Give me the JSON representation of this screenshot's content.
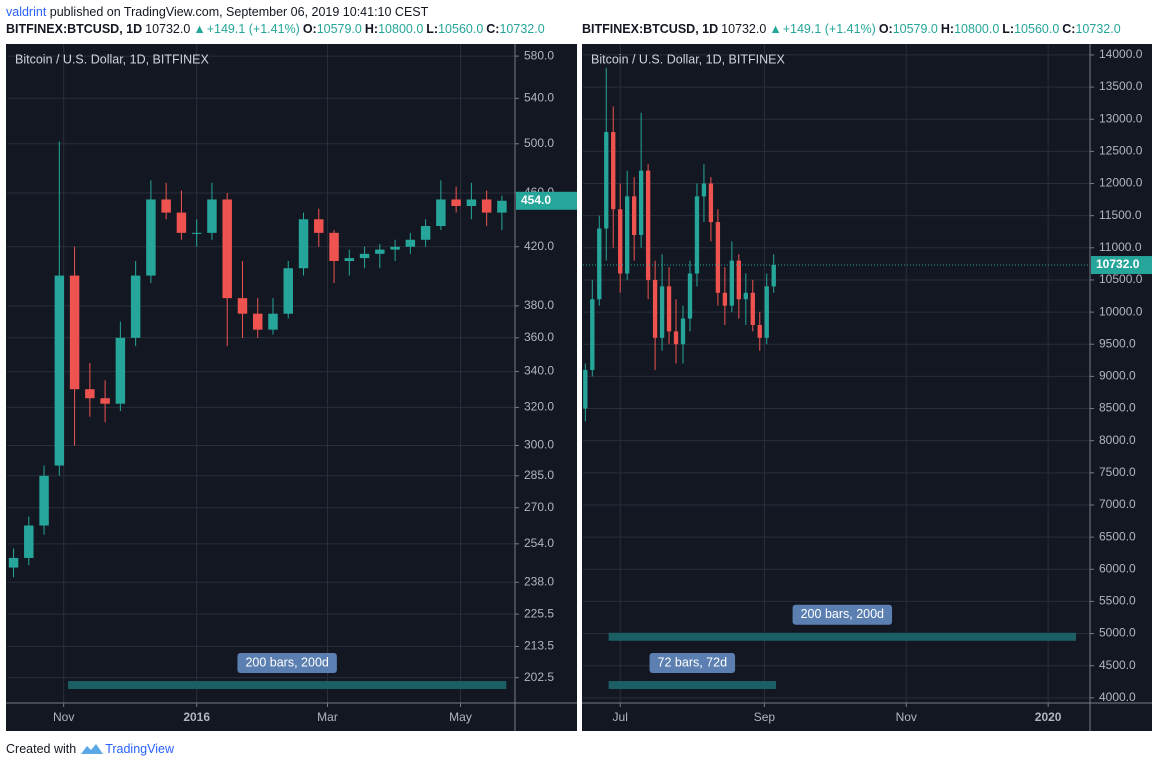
{
  "header": {
    "user": "valdrint",
    "published": "published on TradingView.com, September 06, 2019 10:41:10 CEST"
  },
  "quote": {
    "symbol": "BITFINEX:BTCUSD, 1D",
    "last": "10732.0",
    "change": "+149.1 (+1.41%)",
    "fields": [
      {
        "key": "O:",
        "value": "10579.0"
      },
      {
        "key": "H:",
        "value": "10800.0"
      },
      {
        "key": "L:",
        "value": "10560.0"
      },
      {
        "key": "C:",
        "value": "10732.0"
      }
    ]
  },
  "footer": {
    "created": "Created with",
    "brand": "TradingView"
  },
  "chart_data": [
    {
      "type": "candlestick",
      "title": "Bitcoin / U.S. Dollar, 1D, BITFINEX",
      "log": true,
      "grid": true,
      "up_color": "#26a69a",
      "down_color": "#ef5350",
      "price_line": false,
      "x": [
        3,
        10,
        17,
        24,
        31,
        38,
        45,
        52,
        59,
        66,
        73,
        80,
        87,
        94,
        101,
        108,
        115,
        122,
        129,
        136,
        143,
        150,
        157,
        164,
        171,
        178,
        185,
        192,
        199,
        206,
        213,
        220,
        227
      ],
      "open": [
        244,
        248,
        262,
        290,
        400,
        330,
        325,
        322,
        360,
        400,
        455,
        445,
        430,
        430,
        455,
        385,
        375,
        365,
        375,
        405,
        440,
        430,
        410,
        412,
        415,
        418,
        420,
        425,
        435,
        455,
        450,
        455,
        445
      ],
      "high": [
        252,
        266,
        290,
        502,
        420,
        345,
        335,
        370,
        410,
        470,
        468,
        462,
        440,
        468,
        460,
        410,
        385,
        385,
        410,
        445,
        448,
        432,
        418,
        420,
        422,
        425,
        430,
        440,
        470,
        465,
        468,
        462,
        458
      ],
      "low": [
        240,
        245,
        258,
        285,
        300,
        315,
        312,
        318,
        355,
        395,
        440,
        425,
        420,
        425,
        355,
        360,
        360,
        362,
        372,
        400,
        420,
        395,
        400,
        405,
        405,
        410,
        415,
        420,
        432,
        445,
        440,
        435,
        432
      ],
      "close": [
        248,
        262,
        285,
        400,
        330,
        325,
        322,
        360,
        400,
        455,
        445,
        430,
        430,
        455,
        385,
        375,
        365,
        375,
        405,
        440,
        430,
        410,
        412,
        415,
        418,
        420,
        425,
        435,
        455,
        450,
        455,
        445,
        454
      ],
      "last_label": "454.0",
      "xlim": [
        0,
        233
      ],
      "xticks": [
        {
          "value": 26,
          "label": "Nov"
        },
        {
          "value": 87,
          "label": "2016"
        },
        {
          "value": 147,
          "label": "Mar"
        },
        {
          "value": 208,
          "label": "May"
        }
      ],
      "ylim": [
        194,
        592
      ],
      "yticks": [
        {
          "value": 202.5,
          "label": "202.5"
        },
        {
          "value": 213.5,
          "label": "213.5"
        },
        {
          "value": 225.5,
          "label": "225.5"
        },
        {
          "value": 238,
          "label": "238.0"
        },
        {
          "value": 254,
          "label": "254.0"
        },
        {
          "value": 270,
          "label": "270.0"
        },
        {
          "value": 285,
          "label": "285.0"
        },
        {
          "value": 300,
          "label": "300.0"
        },
        {
          "value": 320,
          "label": "320.0"
        },
        {
          "value": 340,
          "label": "340.0"
        },
        {
          "value": 360,
          "label": "360.0"
        },
        {
          "value": 380,
          "label": "380.0"
        },
        {
          "value": 420,
          "label": "420.0"
        },
        {
          "value": 460,
          "label": "460.0"
        },
        {
          "value": 500,
          "label": "500.0"
        },
        {
          "value": 540,
          "label": "540.0"
        },
        {
          "value": 580,
          "label": "580.0"
        }
      ],
      "ranges": [
        {
          "label": "200 bars, 200d",
          "x": [
            28,
            229
          ],
          "y": 200
        }
      ]
    },
    {
      "type": "candlestick",
      "title": "Bitcoin / U.S. Dollar, 1D, BITFINEX",
      "log": false,
      "grid": true,
      "up_color": "#26a69a",
      "down_color": "#ef5350",
      "price_line": true,
      "x": [
        1,
        4,
        7,
        10,
        13,
        16,
        19,
        22,
        25,
        28,
        31,
        34,
        37,
        40,
        43,
        46,
        49,
        52,
        55,
        58,
        61,
        64,
        67,
        70,
        73,
        76,
        79,
        82
      ],
      "open": [
        8500,
        9100,
        10200,
        11300,
        12800,
        11600,
        10600,
        11800,
        11200,
        12200,
        10500,
        9600,
        10400,
        9700,
        9500,
        9900,
        10600,
        11800,
        12000,
        11400,
        10300,
        10100,
        10800,
        10200,
        10300,
        9800,
        9600,
        10400
      ],
      "high": [
        9200,
        10500,
        11500,
        13800,
        13200,
        12000,
        12200,
        12100,
        13100,
        12300,
        10800,
        10900,
        10700,
        10200,
        10100,
        10800,
        12000,
        12300,
        12100,
        11600,
        10700,
        11100,
        10900,
        10600,
        10500,
        10000,
        10600,
        10900
      ],
      "low": [
        8300,
        9000,
        10100,
        10800,
        11000,
        10300,
        10500,
        10800,
        11000,
        10200,
        9100,
        9400,
        9500,
        9200,
        9200,
        9700,
        10400,
        11400,
        11100,
        10100,
        9800,
        10000,
        9900,
        9800,
        9700,
        9400,
        9500,
        10300
      ],
      "close": [
        9100,
        10200,
        11300,
        12800,
        11600,
        10600,
        11800,
        11200,
        12200,
        10500,
        9600,
        10400,
        9700,
        9500,
        9900,
        10600,
        11800,
        12000,
        11400,
        10300,
        10100,
        10800,
        10200,
        10300,
        9800,
        9600,
        10400,
        10732
      ],
      "last_label": "10732.0",
      "xlim": [
        0,
        218
      ],
      "xticks": [
        {
          "value": 16,
          "label": "Jul"
        },
        {
          "value": 78,
          "label": "Sep"
        },
        {
          "value": 139,
          "label": "Nov"
        },
        {
          "value": 200,
          "label": "2020"
        }
      ],
      "ylim": [
        3920,
        14170
      ],
      "yticks": [
        {
          "value": 4000,
          "label": "4000.0"
        },
        {
          "value": 4500,
          "label": "4500.0"
        },
        {
          "value": 5000,
          "label": "5000.0"
        },
        {
          "value": 5500,
          "label": "5500.0"
        },
        {
          "value": 6000,
          "label": "6000.0"
        },
        {
          "value": 6500,
          "label": "6500.0"
        },
        {
          "value": 7000,
          "label": "7000.0"
        },
        {
          "value": 7500,
          "label": "7500.0"
        },
        {
          "value": 8000,
          "label": "8000.0"
        },
        {
          "value": 8500,
          "label": "8500.0"
        },
        {
          "value": 9000,
          "label": "9000.0"
        },
        {
          "value": 9500,
          "label": "9500.0"
        },
        {
          "value": 10000,
          "label": "10000.0"
        },
        {
          "value": 10500,
          "label": "10500.0"
        },
        {
          "value": 11000,
          "label": "11000.0"
        },
        {
          "value": 11500,
          "label": "11500.0"
        },
        {
          "value": 12000,
          "label": "12000.0"
        },
        {
          "value": 12500,
          "label": "12500.0"
        },
        {
          "value": 13000,
          "label": "13000.0"
        },
        {
          "value": 13500,
          "label": "13500.0"
        },
        {
          "value": 14000,
          "label": "14000.0"
        }
      ],
      "ranges": [
        {
          "label": "200 bars, 200d",
          "x": [
            11,
            212
          ],
          "y": 4950
        },
        {
          "label": "72 bars, 72d",
          "x": [
            11,
            83
          ],
          "y": 4200
        }
      ]
    }
  ]
}
